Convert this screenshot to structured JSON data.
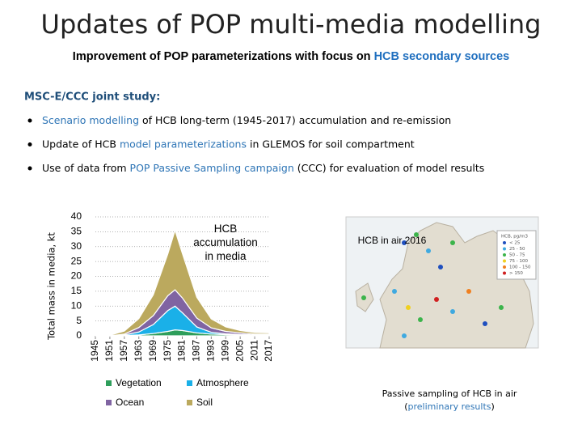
{
  "slide": {
    "title": "Updates of POP multi-media modelling",
    "subtitle": [
      {
        "text": "Improvement of POP parameterizations with focus on ",
        "color": "#000000"
      },
      {
        "text": "HCB secondary sources",
        "color": "#1f6fbf"
      }
    ],
    "section": "MSC-E/CCC joint study:",
    "bullets": [
      [
        {
          "text": "Scenario modelling",
          "color": "#2e75b6"
        },
        {
          "text": " of HCB long-term (1945-2017) accumulation and re-emission",
          "color": "#000000"
        }
      ],
      [
        {
          "text": "Update of HCB ",
          "color": "#000000"
        },
        {
          "text": "model parameterizations",
          "color": "#2e75b6"
        },
        {
          "text": " in GLEMOS for soil compartment",
          "color": "#000000"
        }
      ],
      [
        {
          "text": "Use of data from ",
          "color": "#000000"
        },
        {
          "text": "POP Passive Sampling campaign",
          "color": "#2e75b6"
        },
        {
          "text": " (CCC) for evaluation of model results",
          "color": "#000000"
        }
      ]
    ]
  },
  "chart_data": {
    "type": "stacked_area",
    "annotation": "HCB accumulation in media",
    "ylabel": "Total mass in media, kt",
    "x": [
      1945,
      1951,
      1957,
      1963,
      1969,
      1975,
      1978,
      1981,
      1987,
      1993,
      1999,
      2005,
      2011,
      2017
    ],
    "series": [
      {
        "name": "Vegetation",
        "color": "#2e9e5b",
        "values": [
          0,
          0,
          0.1,
          0.3,
          0.8,
          1.5,
          2,
          1.8,
          1,
          0.6,
          0.4,
          0.3,
          0.2,
          0.2
        ]
      },
      {
        "name": "Atmosphere",
        "color": "#1ab0e8",
        "values": [
          0,
          0,
          0.2,
          1,
          3,
          7,
          8,
          6,
          2,
          0.6,
          0.3,
          0.2,
          0.1,
          0.1
        ]
      },
      {
        "name": "Ocean",
        "color": "#8064a2",
        "values": [
          0,
          0,
          0.3,
          1.5,
          3,
          5,
          5.5,
          5,
          3,
          1.5,
          0.8,
          0.5,
          0.3,
          0.3
        ]
      },
      {
        "name": "Soil",
        "color": "#bba95e",
        "values": [
          0,
          0.2,
          1,
          3,
          7,
          14,
          20,
          15,
          7,
          3,
          1.5,
          0.8,
          0.5,
          0.4
        ]
      }
    ],
    "xlim": [
      1945,
      2017
    ],
    "xticks": [
      1945,
      1951,
      1957,
      1963,
      1969,
      1975,
      1981,
      1987,
      1993,
      1999,
      2005,
      2011,
      2017
    ],
    "ylim": [
      0,
      40
    ],
    "yticks": [
      0,
      5,
      10,
      15,
      20,
      25,
      30,
      35,
      40
    ],
    "grid": true
  },
  "map": {
    "title": "HCB in air 2016",
    "legend_title": "HCB, pg/m3",
    "legend": [
      {
        "label": "< 25",
        "color": "#1f4fbf"
      },
      {
        "label": "25 - 50",
        "color": "#3fa9e0"
      },
      {
        "label": "50 - 75",
        "color": "#3cb44b"
      },
      {
        "label": "75 - 100",
        "color": "#f0d020"
      },
      {
        "label": "100 - 150",
        "color": "#f08020"
      },
      {
        "label": "> 150",
        "color": "#d02020"
      }
    ],
    "caption": [
      {
        "text": "Passive sampling of HCB in air",
        "color": "#000000"
      }
    ],
    "caption_line2": [
      {
        "text": "(",
        "color": "#000000"
      },
      {
        "text": "preliminary results",
        "color": "#2e75b6"
      },
      {
        "text": ")",
        "color": "#000000"
      }
    ]
  }
}
